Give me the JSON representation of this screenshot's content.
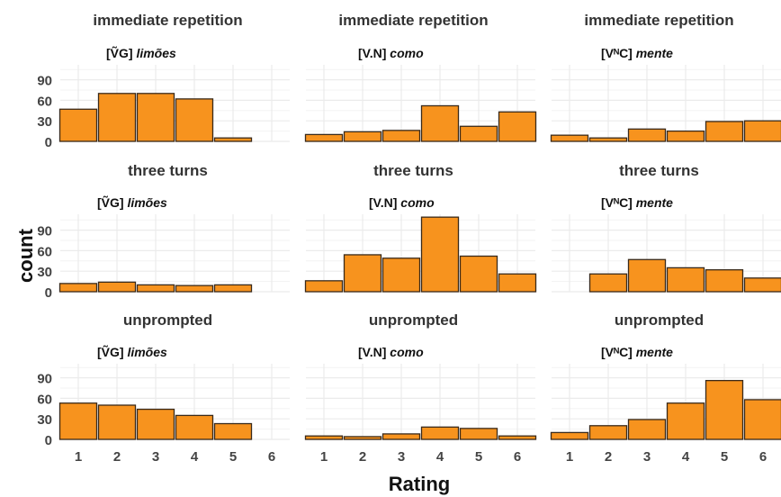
{
  "chart_data": {
    "type": "bar",
    "xlabel": "Rating",
    "ylabel": "count",
    "x_ticks": [
      "1",
      "2",
      "3",
      "4",
      "5",
      "6"
    ],
    "y_ticks": [
      "90",
      "60",
      "30",
      "0"
    ],
    "ylim": [
      0,
      115
    ],
    "grid": true,
    "colors": {
      "bar_fill": "#F7931E",
      "bar_stroke": "#3a2a1a",
      "grid": "#ebebeb"
    },
    "panels": [
      {
        "row": 0,
        "col": 0,
        "strip": "immediate repetition",
        "label_prefix": "[ṼG]",
        "label_word": "limões",
        "categories": [
          1,
          2,
          3,
          4,
          5
        ],
        "values": [
          47,
          70,
          70,
          62,
          5
        ]
      },
      {
        "row": 0,
        "col": 1,
        "strip": "immediate repetition",
        "label_prefix": "[V.N]",
        "label_word": "como",
        "categories": [
          1,
          2,
          3,
          4,
          5,
          6
        ],
        "values": [
          10,
          14,
          16,
          52,
          22,
          43
        ]
      },
      {
        "row": 0,
        "col": 2,
        "strip": "immediate repetition",
        "label_prefix": "[VᴺC]",
        "label_word": "mente",
        "categories": [
          1,
          2,
          3,
          4,
          5,
          6
        ],
        "values": [
          9,
          5,
          18,
          15,
          29,
          30
        ]
      },
      {
        "row": 1,
        "col": 0,
        "strip": "three turns",
        "label_prefix": "[ṼG]",
        "label_word": "limões",
        "categories": [
          1,
          2,
          3,
          4,
          5
        ],
        "values": [
          12,
          14,
          10,
          9,
          10
        ]
      },
      {
        "row": 1,
        "col": 1,
        "strip": "three turns",
        "label_prefix": "[V.N]",
        "label_word": "como",
        "categories": [
          1,
          2,
          3,
          4,
          5,
          6
        ],
        "values": [
          16,
          54,
          49,
          109,
          52,
          26
        ]
      },
      {
        "row": 1,
        "col": 2,
        "strip": "three turns",
        "label_prefix": "[VᴺC]",
        "label_word": "mente",
        "categories": [
          2,
          3,
          4,
          5,
          6
        ],
        "values": [
          26,
          47,
          35,
          32,
          20
        ]
      },
      {
        "row": 2,
        "col": 0,
        "strip": "unprompted",
        "label_prefix": "[ṼG]",
        "label_word": "limões",
        "categories": [
          1,
          2,
          3,
          4,
          5
        ],
        "values": [
          53,
          50,
          44,
          35,
          23
        ]
      },
      {
        "row": 2,
        "col": 1,
        "strip": "unprompted",
        "label_prefix": "[V.N]",
        "label_word": "como",
        "categories": [
          1,
          2,
          3,
          4,
          5,
          6
        ],
        "values": [
          5,
          4,
          8,
          18,
          16,
          5
        ]
      },
      {
        "row": 2,
        "col": 2,
        "strip": "unprompted",
        "label_prefix": "[VᴺC]",
        "label_word": "mente",
        "categories": [
          1,
          2,
          3,
          4,
          5,
          6
        ],
        "values": [
          10,
          20,
          29,
          53,
          86,
          58
        ]
      }
    ]
  }
}
